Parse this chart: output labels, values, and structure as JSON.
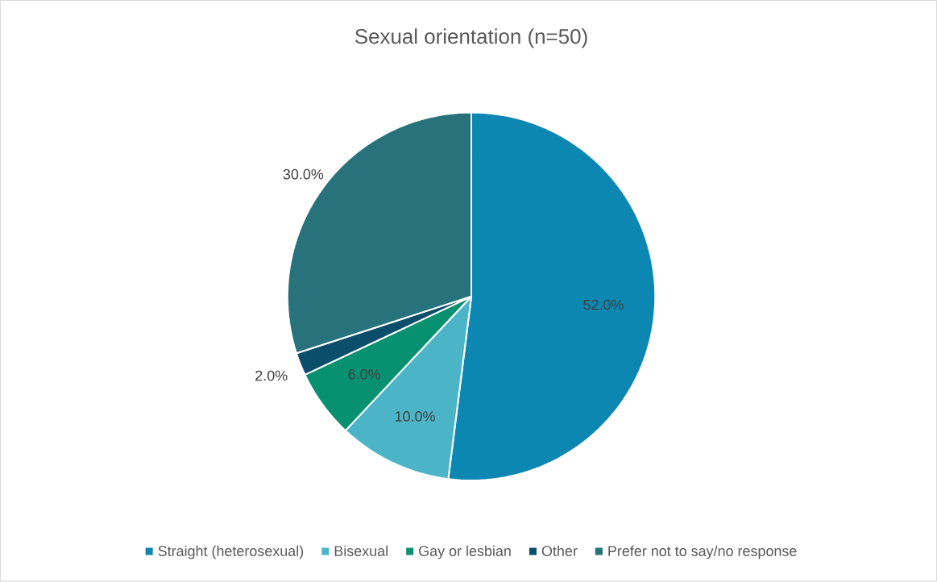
{
  "chart_data": {
    "type": "pie",
    "title": "Sexual orientation (n=50)",
    "categories": [
      "Straight (heterosexual)",
      "Bisexual",
      "Gay or lesbian",
      "Other",
      "Prefer not to say/no response"
    ],
    "values": [
      52,
      10,
      6,
      2,
      30
    ],
    "colors": [
      "#0b87b1",
      "#4bb5c7",
      "#079170",
      "#0b4e6b",
      "#27727b"
    ],
    "value_labels": [
      "52.0%",
      "10.0%",
      "6.0%",
      "2.0%",
      "30.0%"
    ],
    "legend": "bottom"
  }
}
